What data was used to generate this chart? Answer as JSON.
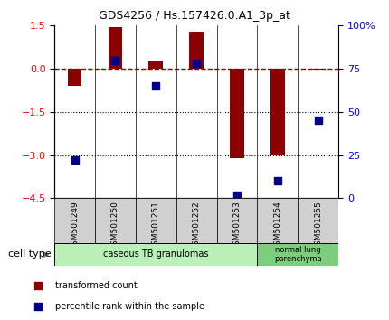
{
  "title": "GDS4256 / Hs.157426.0.A1_3p_at",
  "samples": [
    "GSM501249",
    "GSM501250",
    "GSM501251",
    "GSM501252",
    "GSM501253",
    "GSM501254",
    "GSM501255"
  ],
  "bar_values": [
    -0.6,
    1.45,
    0.25,
    1.3,
    -3.1,
    -3.0,
    -0.02
  ],
  "dot_values": [
    22,
    80,
    65,
    78,
    2,
    10,
    45
  ],
  "ylim_left": [
    -4.5,
    1.5
  ],
  "ylim_right": [
    0,
    100
  ],
  "left_ticks": [
    1.5,
    0,
    -1.5,
    -3,
    -4.5
  ],
  "right_ticks": [
    100,
    75,
    50,
    25,
    0
  ],
  "right_tick_labels": [
    "100%",
    "75",
    "50",
    "25",
    "0"
  ],
  "bar_color": "#8B0000",
  "dot_color": "#00008B",
  "dotted_lines": [
    -1.5,
    -3.0
  ],
  "group1_color": "#b8f0b8",
  "group2_color": "#7CCD7C",
  "gsm_bg_color": "#d0d0d0",
  "legend_items": [
    {
      "label": "transformed count",
      "color": "#8B0000"
    },
    {
      "label": "percentile rank within the sample",
      "color": "#00008B"
    }
  ],
  "cell_type_label": "cell type"
}
